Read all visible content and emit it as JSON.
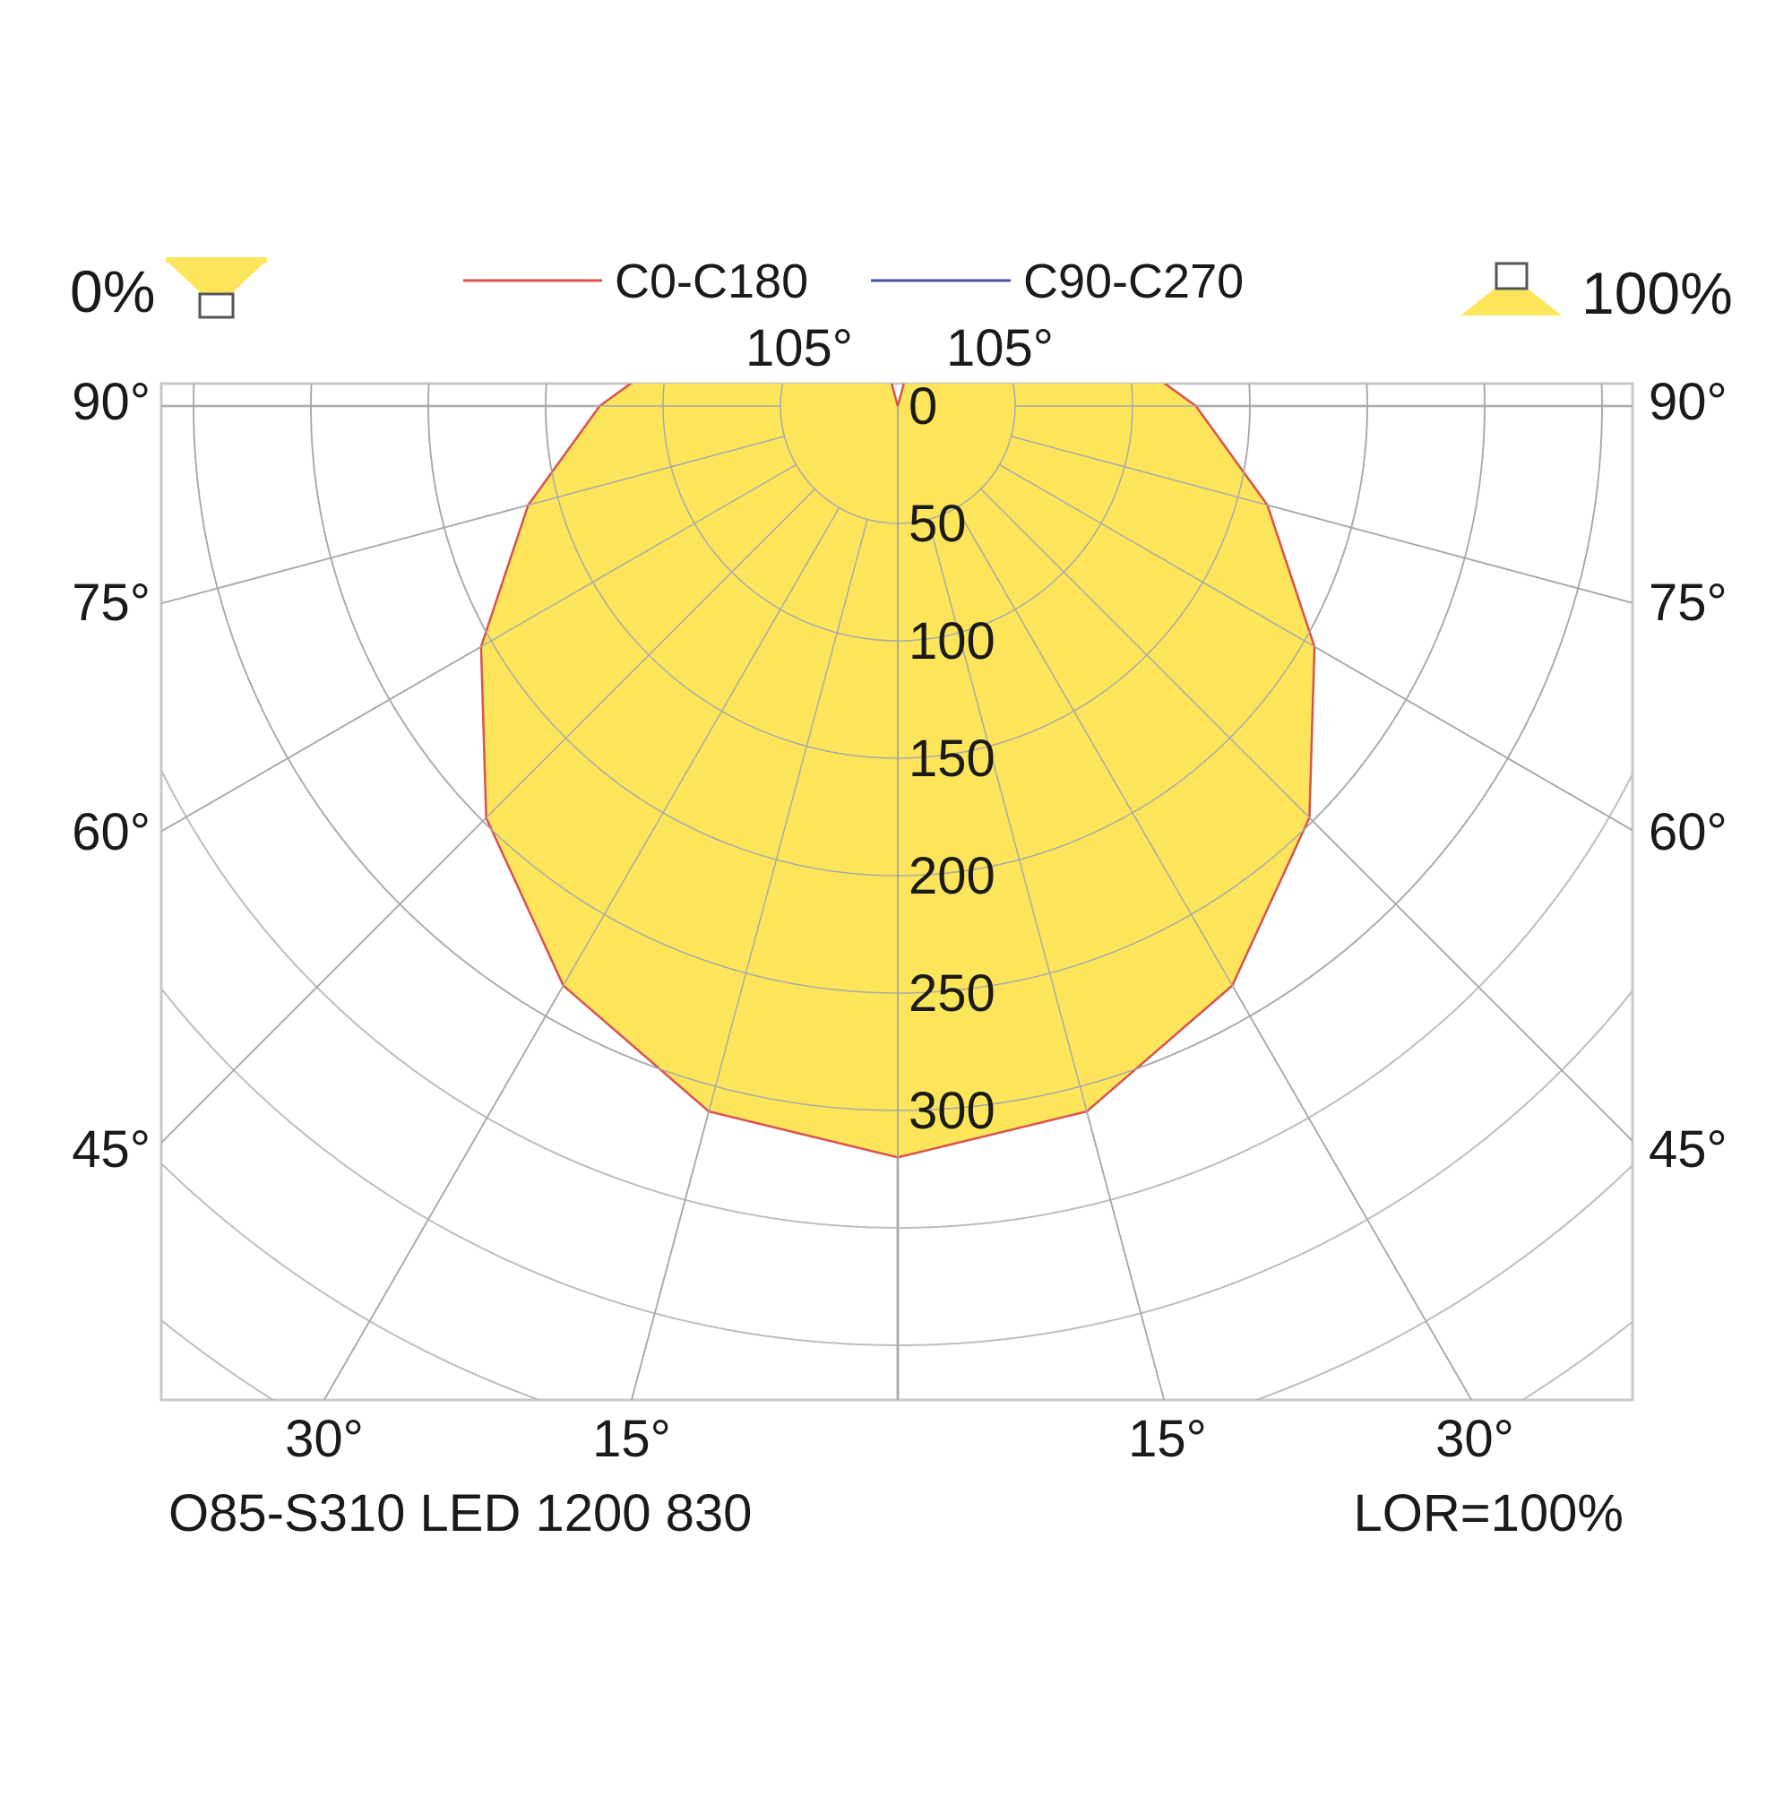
{
  "chart_data": {
    "type": "polar",
    "title": "",
    "luminaire": "O85-S310 LED 1200 830",
    "lor_label": "LOR=100%",
    "downward_label": "0%",
    "upward_label": "100%",
    "legend": [
      {
        "name": "C0-C180",
        "color": "#d9534f"
      },
      {
        "name": "C90-C270",
        "color": "#4a55a2"
      }
    ],
    "radial_ticks": [
      0,
      50,
      100,
      150,
      200,
      250,
      300
    ],
    "radial_tick_labels": [
      "0",
      "50",
      "100",
      "150",
      "200",
      "250",
      "300"
    ],
    "left_angle_labels": [
      {
        "angle": 90,
        "text": "90°"
      },
      {
        "angle": 75,
        "text": "75°"
      },
      {
        "angle": 60,
        "text": "60°"
      },
      {
        "angle": 45,
        "text": "45°"
      }
    ],
    "right_angle_labels": [
      {
        "angle": 90,
        "text": "90°"
      },
      {
        "angle": 75,
        "text": "75°"
      },
      {
        "angle": 60,
        "text": "60°"
      },
      {
        "angle": 45,
        "text": "45°"
      }
    ],
    "bottom_angle_labels": [
      {
        "angle": -30,
        "text": "30°"
      },
      {
        "angle": -15,
        "text": "15°"
      },
      {
        "angle": 15,
        "text": "15°"
      },
      {
        "angle": 30,
        "text": "30°"
      }
    ],
    "top_angle_labels": [
      {
        "angle": -105,
        "text": "105°"
      },
      {
        "angle": 105,
        "text": "105°"
      }
    ],
    "series": [
      {
        "name": "C0-C180",
        "angles_deg": [
          0,
          15,
          30,
          45,
          60,
          75,
          90,
          105,
          120,
          135,
          150,
          165,
          180
        ],
        "values": [
          320,
          311,
          285,
          248,
          205,
          163,
          127,
          96,
          70,
          47,
          27,
          11,
          0
        ]
      },
      {
        "name": "C90-C270",
        "angles_deg": [
          0,
          15,
          30,
          45,
          60,
          75,
          90,
          105,
          120,
          135,
          150,
          165,
          180
        ],
        "values": [
          320,
          311,
          285,
          248,
          205,
          163,
          127,
          96,
          70,
          47,
          27,
          11,
          0
        ]
      }
    ],
    "grid": true,
    "fill_color": "#fce55a"
  }
}
